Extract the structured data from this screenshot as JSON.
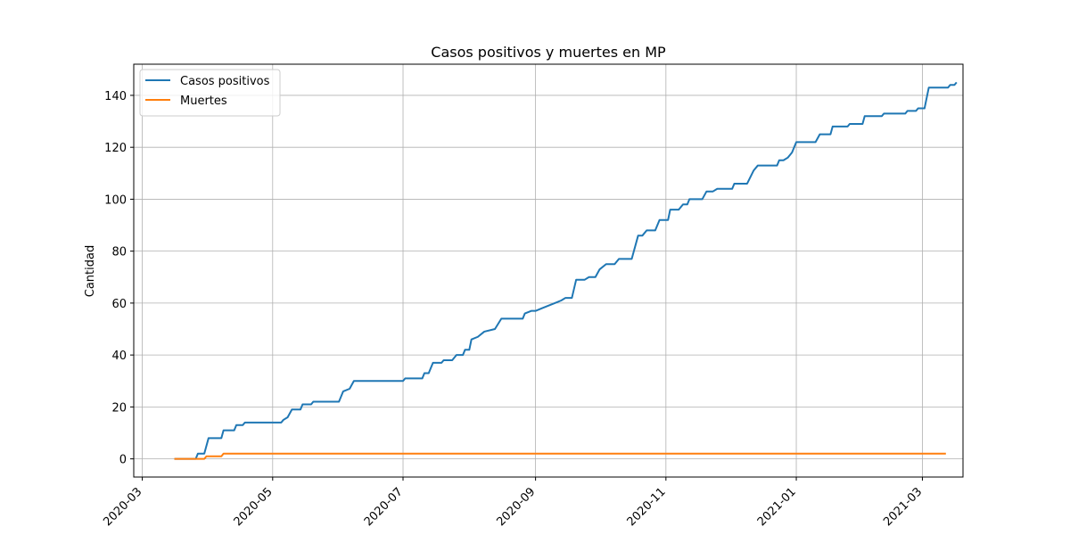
{
  "chart_data": {
    "type": "line",
    "title": "Casos positivos y muertes en MP",
    "xlabel": "",
    "ylabel": "Cantidad",
    "x_axis": "date",
    "xlim": [
      "2020-02-26",
      "2021-03-20"
    ],
    "ylim": [
      -7,
      152
    ],
    "x_ticks": [
      "2020-03",
      "2020-05",
      "2020-07",
      "2020-09",
      "2020-11",
      "2021-01",
      "2021-03"
    ],
    "y_ticks": [
      0,
      20,
      40,
      60,
      80,
      100,
      120,
      140
    ],
    "grid": true,
    "legend_position": "top-left",
    "series": [
      {
        "name": "Casos positivos",
        "color": "#1f77b4",
        "points": [
          [
            "2020-03-16",
            0
          ],
          [
            "2020-03-26",
            0
          ],
          [
            "2020-03-27",
            2
          ],
          [
            "2020-03-30",
            2
          ],
          [
            "2020-04-01",
            8
          ],
          [
            "2020-04-07",
            8
          ],
          [
            "2020-04-08",
            11
          ],
          [
            "2020-04-13",
            11
          ],
          [
            "2020-04-14",
            13
          ],
          [
            "2020-04-17",
            13
          ],
          [
            "2020-04-18",
            14
          ],
          [
            "2020-05-05",
            14
          ],
          [
            "2020-05-06",
            15
          ],
          [
            "2020-05-08",
            16
          ],
          [
            "2020-05-10",
            19
          ],
          [
            "2020-05-14",
            19
          ],
          [
            "2020-05-15",
            21
          ],
          [
            "2020-05-19",
            21
          ],
          [
            "2020-05-20",
            22
          ],
          [
            "2020-06-01",
            22
          ],
          [
            "2020-06-03",
            26
          ],
          [
            "2020-06-06",
            27
          ],
          [
            "2020-06-08",
            30
          ],
          [
            "2020-07-01",
            30
          ],
          [
            "2020-07-02",
            31
          ],
          [
            "2020-07-10",
            31
          ],
          [
            "2020-07-11",
            33
          ],
          [
            "2020-07-13",
            33
          ],
          [
            "2020-07-15",
            37
          ],
          [
            "2020-07-19",
            37
          ],
          [
            "2020-07-20",
            38
          ],
          [
            "2020-07-24",
            38
          ],
          [
            "2020-07-26",
            40
          ],
          [
            "2020-07-29",
            40
          ],
          [
            "2020-07-30",
            42
          ],
          [
            "2020-08-01",
            42
          ],
          [
            "2020-08-02",
            46
          ],
          [
            "2020-08-05",
            47
          ],
          [
            "2020-08-08",
            49
          ],
          [
            "2020-08-13",
            50
          ],
          [
            "2020-08-16",
            54
          ],
          [
            "2020-08-26",
            54
          ],
          [
            "2020-08-27",
            56
          ],
          [
            "2020-08-30",
            57
          ],
          [
            "2020-09-01",
            57
          ],
          [
            "2020-09-04",
            58
          ],
          [
            "2020-09-07",
            59
          ],
          [
            "2020-09-10",
            60
          ],
          [
            "2020-09-13",
            61
          ],
          [
            "2020-09-15",
            62
          ],
          [
            "2020-09-18",
            62
          ],
          [
            "2020-09-20",
            69
          ],
          [
            "2020-09-24",
            69
          ],
          [
            "2020-09-26",
            70
          ],
          [
            "2020-09-29",
            70
          ],
          [
            "2020-10-01",
            73
          ],
          [
            "2020-10-04",
            75
          ],
          [
            "2020-10-08",
            75
          ],
          [
            "2020-10-10",
            77
          ],
          [
            "2020-10-16",
            77
          ],
          [
            "2020-10-19",
            86
          ],
          [
            "2020-10-21",
            86
          ],
          [
            "2020-10-23",
            88
          ],
          [
            "2020-10-27",
            88
          ],
          [
            "2020-10-29",
            92
          ],
          [
            "2020-11-02",
            92
          ],
          [
            "2020-11-03",
            96
          ],
          [
            "2020-11-07",
            96
          ],
          [
            "2020-11-09",
            98
          ],
          [
            "2020-11-11",
            98
          ],
          [
            "2020-11-12",
            100
          ],
          [
            "2020-11-18",
            100
          ],
          [
            "2020-11-20",
            103
          ],
          [
            "2020-11-23",
            103
          ],
          [
            "2020-11-25",
            104
          ],
          [
            "2020-12-02",
            104
          ],
          [
            "2020-12-03",
            106
          ],
          [
            "2020-12-09",
            106
          ],
          [
            "2020-12-12",
            111
          ],
          [
            "2020-12-14",
            113
          ],
          [
            "2020-12-23",
            113
          ],
          [
            "2020-12-24",
            115
          ],
          [
            "2020-12-26",
            115
          ],
          [
            "2020-12-28",
            116
          ],
          [
            "2020-12-30",
            118
          ],
          [
            "2021-01-01",
            122
          ],
          [
            "2021-01-10",
            122
          ],
          [
            "2021-01-12",
            125
          ],
          [
            "2021-01-17",
            125
          ],
          [
            "2021-01-18",
            128
          ],
          [
            "2021-01-25",
            128
          ],
          [
            "2021-01-26",
            129
          ],
          [
            "2021-02-01",
            129
          ],
          [
            "2021-02-02",
            132
          ],
          [
            "2021-02-10",
            132
          ],
          [
            "2021-02-11",
            133
          ],
          [
            "2021-02-21",
            133
          ],
          [
            "2021-02-22",
            134
          ],
          [
            "2021-02-26",
            134
          ],
          [
            "2021-02-27",
            135
          ],
          [
            "2021-03-02",
            135
          ],
          [
            "2021-03-04",
            143
          ],
          [
            "2021-03-13",
            143
          ],
          [
            "2021-03-14",
            144
          ],
          [
            "2021-03-16",
            144
          ],
          [
            "2021-03-17",
            145
          ]
        ]
      },
      {
        "name": "Muertes",
        "color": "#ff7f0e",
        "points": [
          [
            "2020-03-16",
            0
          ],
          [
            "2020-03-30",
            0
          ],
          [
            "2020-03-31",
            1
          ],
          [
            "2020-04-07",
            1
          ],
          [
            "2020-04-08",
            2
          ],
          [
            "2021-03-12",
            2
          ]
        ]
      }
    ]
  }
}
